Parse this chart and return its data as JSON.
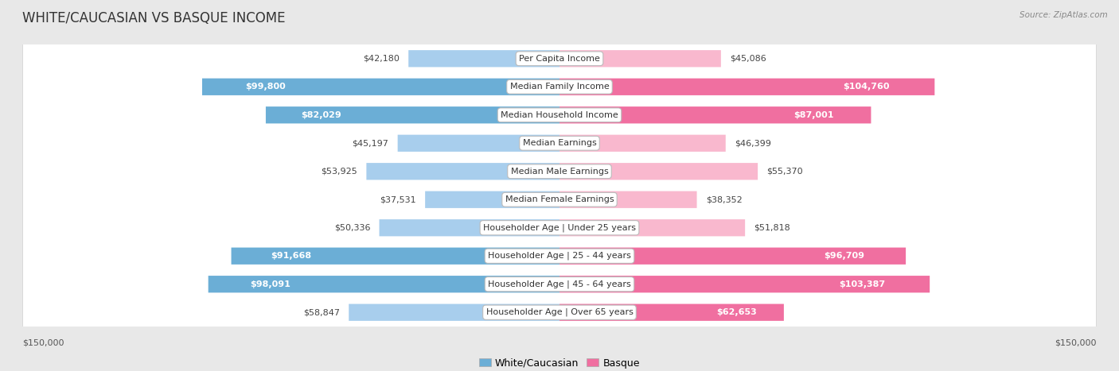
{
  "title": "WHITE/CAUCASIAN VS BASQUE INCOME",
  "source": "Source: ZipAtlas.com",
  "categories": [
    "Per Capita Income",
    "Median Family Income",
    "Median Household Income",
    "Median Earnings",
    "Median Male Earnings",
    "Median Female Earnings",
    "Householder Age | Under 25 years",
    "Householder Age | 25 - 44 years",
    "Householder Age | 45 - 64 years",
    "Householder Age | Over 65 years"
  ],
  "white_values": [
    42180,
    99800,
    82029,
    45197,
    53925,
    37531,
    50336,
    91668,
    98091,
    58847
  ],
  "basque_values": [
    45086,
    104760,
    87001,
    46399,
    55370,
    38352,
    51818,
    96709,
    103387,
    62653
  ],
  "white_labels": [
    "$42,180",
    "$99,800",
    "$82,029",
    "$45,197",
    "$53,925",
    "$37,531",
    "$50,336",
    "$91,668",
    "$98,091",
    "$58,847"
  ],
  "basque_labels": [
    "$45,086",
    "$104,760",
    "$87,001",
    "$46,399",
    "$55,370",
    "$38,352",
    "$51,818",
    "$96,709",
    "$103,387",
    "$62,653"
  ],
  "white_color_light": "#A8CEED",
  "white_color_dark": "#6BAED6",
  "basque_color_light": "#F9B8CE",
  "basque_color_dark": "#F06FA0",
  "white_inside_threshold": 60000,
  "basque_inside_threshold": 60000,
  "max_val": 150000,
  "bg_color": "#e8e8e8",
  "row_bg": "#ffffff",
  "title_fontsize": 12,
  "label_fontsize": 8,
  "category_fontsize": 8,
  "xlabel_fontsize": 8
}
